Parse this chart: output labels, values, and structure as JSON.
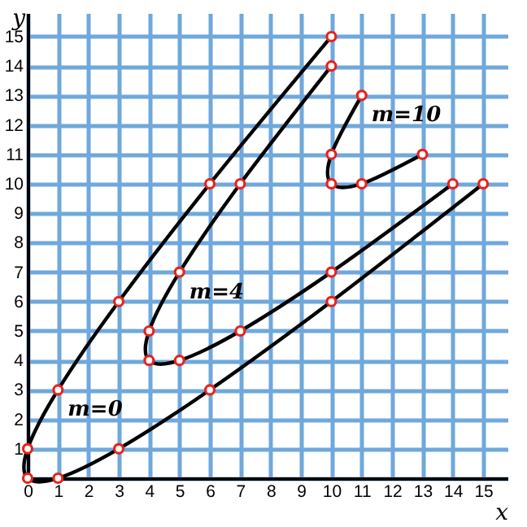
{
  "chart_data": {
    "type": "line",
    "xlabel": "x",
    "ylabel": "y",
    "series": [
      {
        "name": "m=0",
        "color": "#000000",
        "x": [
          10,
          6,
          3,
          1,
          0,
          0,
          1,
          3,
          6,
          10,
          15
        ],
        "values": [
          15,
          10,
          6,
          3,
          1,
          0,
          0,
          1,
          3,
          6,
          10
        ]
      },
      {
        "name": "m=4",
        "color": "#000000",
        "x": [
          10,
          7,
          5,
          4,
          4,
          5,
          7,
          10,
          14
        ],
        "values": [
          14,
          10,
          7,
          5,
          4,
          4,
          5,
          7,
          10
        ]
      },
      {
        "name": "m=10",
        "color": "#000000",
        "x": [
          11,
          10,
          10,
          11,
          13
        ],
        "values": [
          13,
          11,
          10,
          10,
          11
        ]
      }
    ],
    "xlim": [
      0,
      15.8
    ],
    "ylim": [
      0,
      15.8
    ],
    "xticks": [
      0,
      1,
      2,
      3,
      4,
      5,
      6,
      7,
      8,
      9,
      10,
      11,
      12,
      13,
      14,
      15
    ],
    "yticks": [
      {
        "value": 0,
        "label": null
      },
      1,
      2,
      3,
      4,
      5,
      6,
      7,
      8,
      9,
      10,
      11,
      12,
      13,
      14,
      15
    ],
    "grid": true,
    "legend": false,
    "marker": "circle",
    "line_style": "solid"
  }
}
